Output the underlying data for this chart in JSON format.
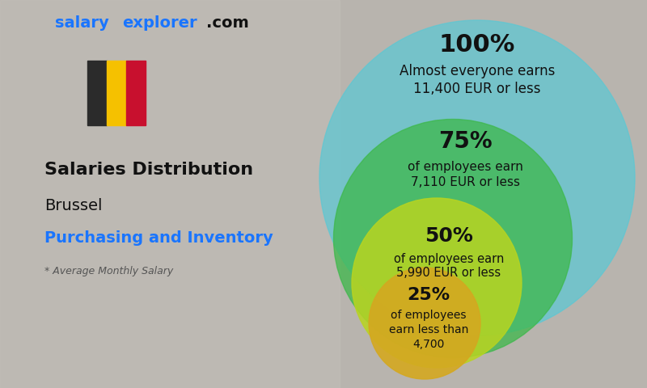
{
  "website_salary": "salary",
  "website_explorer": "explorer",
  "website_com": ".com",
  "heading1": "Salaries Distribution",
  "heading2": "Brussel",
  "heading3": "Purchasing and Inventory",
  "subtitle": "* Average Monthly Salary",
  "pct_100": "100%",
  "pct_100_l1": "Almost everyone earns",
  "pct_100_l2": "11,400 EUR or less",
  "pct_75": "75%",
  "pct_75_l1": "of employees earn",
  "pct_75_l2": "7,110 EUR or less",
  "pct_50": "50%",
  "pct_50_l1": "of employees earn",
  "pct_50_l2": "5,990 EUR or less",
  "pct_25": "25%",
  "pct_25_l1": "of employees",
  "pct_25_l2": "earn less than",
  "pct_25_l3": "4,700",
  "color_100": "#5bc8d4",
  "color_75": "#3db84a",
  "color_50": "#b8d420",
  "color_25": "#d4a820",
  "alpha_100": 0.72,
  "alpha_75": 0.75,
  "alpha_50": 0.85,
  "alpha_25": 0.9,
  "bg_left": "#c8c8c8",
  "bg_right": "#b8b8a8",
  "flag_black": "#2b2b2b",
  "flag_yellow": "#f5c100",
  "flag_red": "#c8102e",
  "color_blue": "#1a75ff",
  "color_dark": "#111111",
  "color_grey": "#555555"
}
